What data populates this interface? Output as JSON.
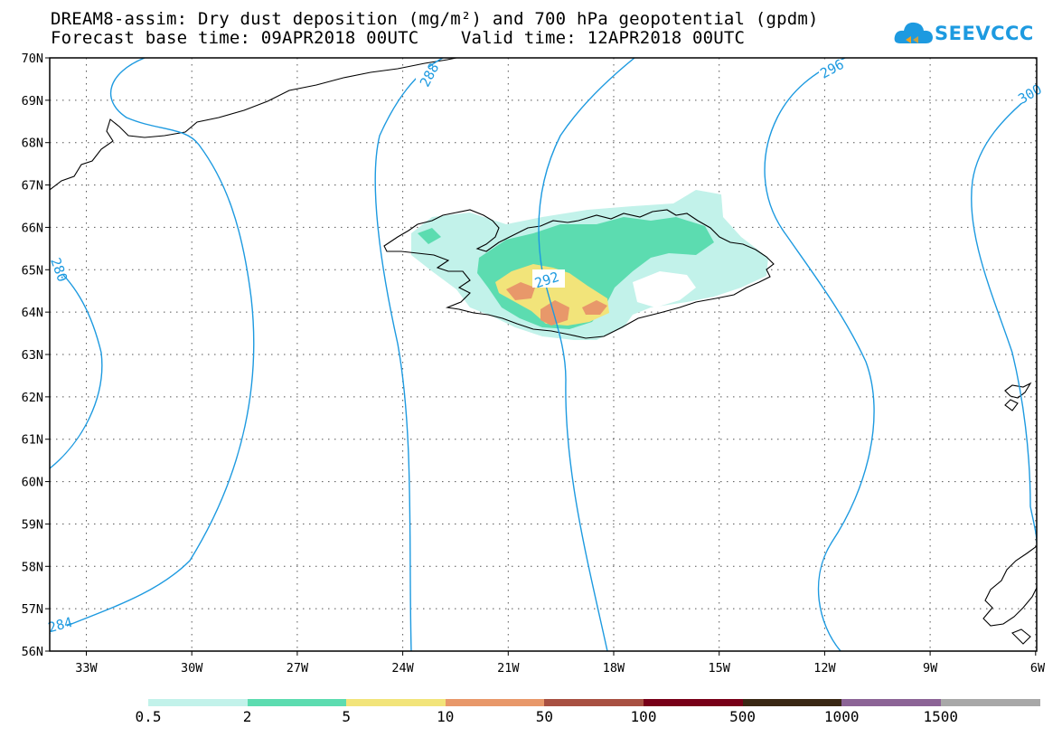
{
  "title": {
    "line1": "DREAM8-assim: Dry dust deposition (mg/m²) and 700 hPa geopotential (gpdm)",
    "line2": "Forecast base time: 09APR2018 00UTC    Valid time: 12APR2018 00UTC"
  },
  "logo": {
    "text": "SEEVCCC",
    "icon": "cloud-icon"
  },
  "map": {
    "latitude_labels": [
      "70N",
      "69N",
      "68N",
      "67N",
      "66N",
      "65N",
      "64N",
      "63N",
      "62N",
      "61N",
      "60N",
      "59N",
      "58N",
      "57N",
      "56N"
    ],
    "longitude_labels": [
      "33W",
      "30W",
      "27W",
      "24W",
      "21W",
      "18W",
      "15W",
      "12W",
      "9W",
      "6W"
    ],
    "contour_labels": [
      "280",
      "288",
      "292",
      "296",
      "300",
      "284"
    ],
    "contour_color": "#1d9ae0",
    "coastline_color": "#000000"
  },
  "colorbar": {
    "labels": [
      "0.5",
      "2",
      "5",
      "10",
      "50",
      "100",
      "500",
      "1000",
      "1500"
    ],
    "colors": [
      "#c2f2ea",
      "#5cdcb0",
      "#f2e47a",
      "#e8986a",
      "#a85042",
      "#780018",
      "#3a2814",
      "#8c6496",
      "#a8a8a8"
    ]
  }
}
